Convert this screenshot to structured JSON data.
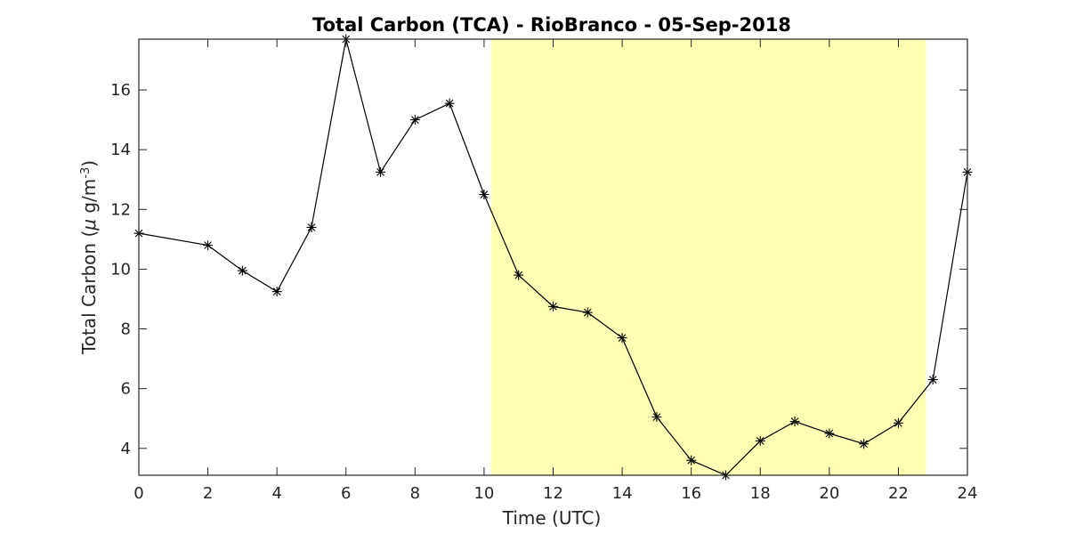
{
  "chart_data": {
    "type": "line",
    "title": "Total Carbon (TCA) - RioBranco - 05-Sep-2018",
    "xlabel": "Time (UTC)",
    "ylabel": {
      "prefix": "Total Carbon (",
      "mu": "μ",
      "unit": " g/m",
      "exponent": "-3",
      "suffix": ")"
    },
    "xlim": [
      0,
      24
    ],
    "ylim": [
      3.1,
      17.7
    ],
    "x_ticks": [
      0,
      2,
      4,
      6,
      8,
      10,
      12,
      14,
      16,
      18,
      20,
      22,
      24
    ],
    "y_ticks": [
      4,
      6,
      8,
      10,
      12,
      14,
      16
    ],
    "grid": false,
    "marker": "asterisk",
    "line_color": "#000000",
    "highlight": {
      "x_start": 10.2,
      "x_end": 22.8,
      "color": "#ffffb3"
    },
    "series": [
      {
        "x": [
          0,
          2,
          3,
          4,
          5,
          6,
          7,
          8,
          9,
          10,
          11,
          12,
          13,
          14,
          15,
          16,
          17,
          18,
          19,
          20,
          21,
          22,
          23,
          24
        ],
        "y": [
          11.2,
          10.8,
          9.95,
          9.25,
          11.4,
          17.7,
          13.25,
          15.0,
          15.55,
          12.5,
          9.8,
          8.75,
          8.55,
          7.7,
          5.05,
          3.6,
          3.1,
          4.25,
          4.9,
          4.5,
          4.15,
          4.85,
          6.3,
          13.25
        ]
      }
    ]
  }
}
